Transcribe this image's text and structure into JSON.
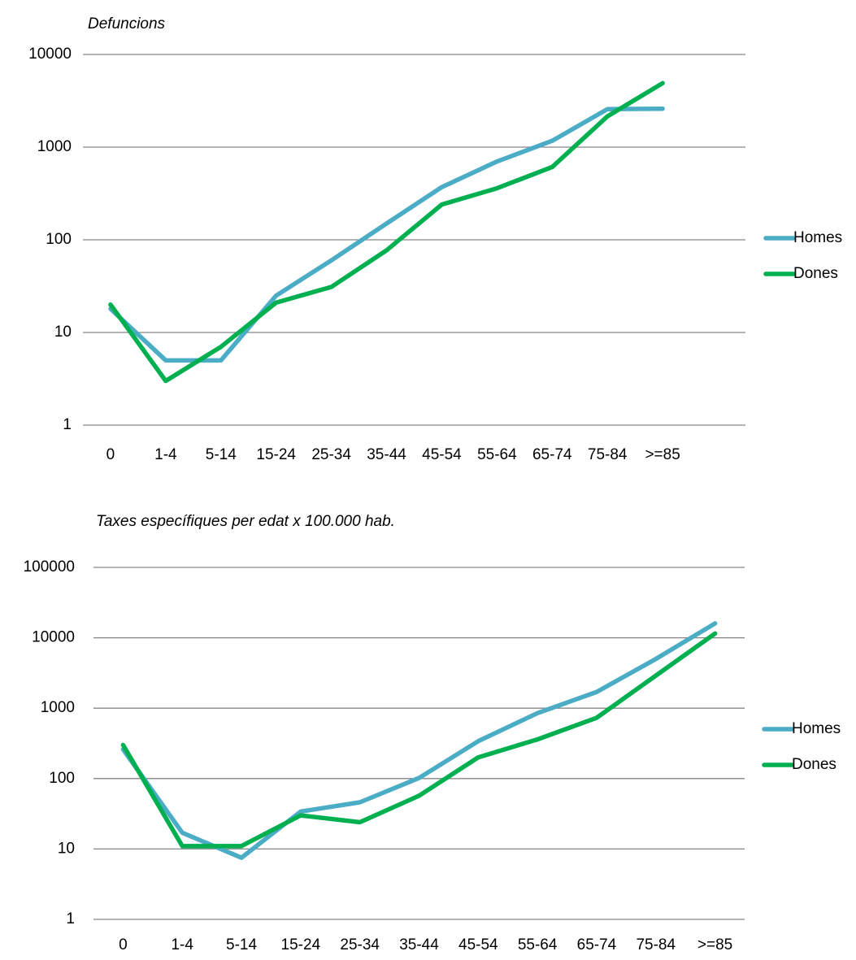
{
  "chart_data": [
    {
      "type": "line",
      "title": "Defuncions",
      "log_scale": true,
      "grid": true,
      "legend": "right",
      "categories": [
        "0",
        "1-4",
        "5-14",
        "15-24",
        "25-34",
        "35-44",
        "45-54",
        "55-64",
        "65-74",
        "75-84",
        ">=85"
      ],
      "ylim": [
        1,
        10000
      ],
      "yticks": [
        1,
        10,
        100,
        1000,
        10000
      ],
      "series": [
        {
          "name": "Homes",
          "color": "#4bacc6",
          "values": [
            18,
            5,
            5,
            25,
            60,
            150,
            370,
            700,
            1170,
            2570,
            2600
          ]
        },
        {
          "name": "Dones",
          "color": "#00b050",
          "values": [
            20,
            3,
            7,
            21,
            31,
            77,
            240,
            360,
            610,
            2150,
            4900
          ]
        }
      ]
    },
    {
      "type": "line",
      "title": "Taxes específiques per edat x 100.000 hab.",
      "log_scale": true,
      "grid": true,
      "legend": "right",
      "categories": [
        "0",
        "1-4",
        "5-14",
        "15-24",
        "25-34",
        "35-44",
        "45-54",
        "55-64",
        "65-74",
        "75-84",
        ">=85"
      ],
      "ylim": [
        1,
        100000
      ],
      "yticks": [
        1,
        10,
        100,
        1000,
        10000,
        100000
      ],
      "series": [
        {
          "name": "Homes",
          "color": "#4bacc6",
          "values": [
            260,
            17,
            7.5,
            34,
            46,
            102,
            340,
            850,
            1700,
            5000,
            16000
          ]
        },
        {
          "name": "Dones",
          "color": "#00b050",
          "values": [
            300,
            11,
            11,
            30,
            24,
            57,
            200,
            360,
            730,
            2900,
            11500
          ]
        }
      ]
    }
  ]
}
